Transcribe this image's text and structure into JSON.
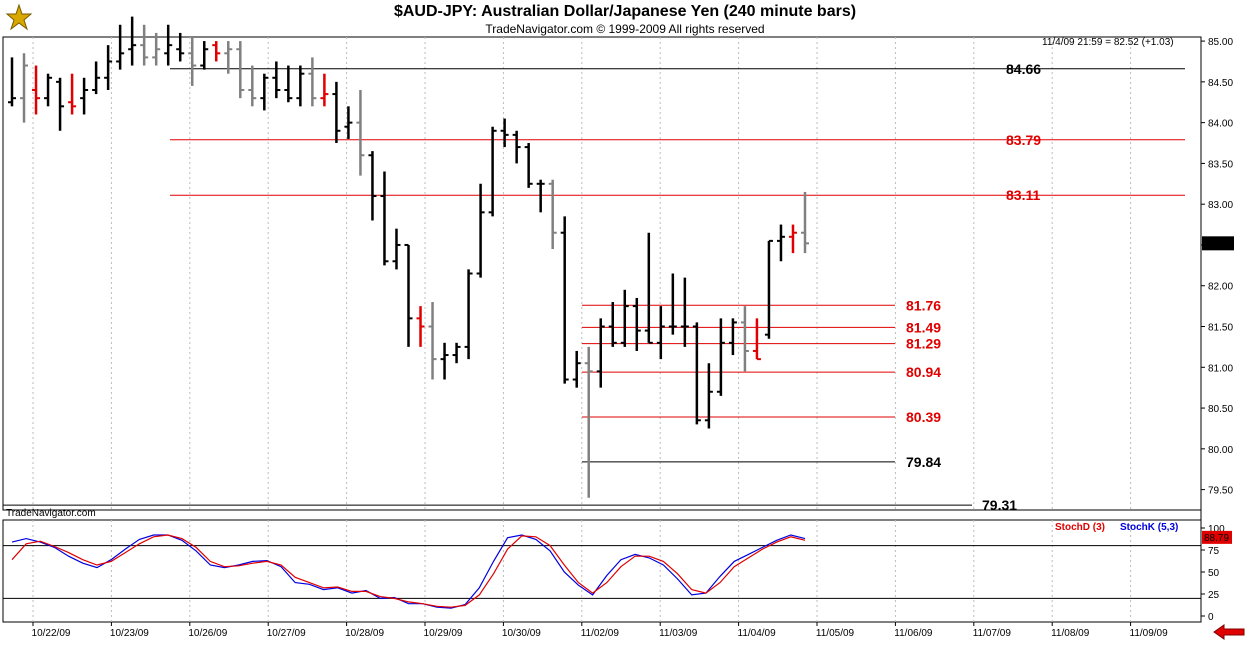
{
  "header": {
    "title": "$AUD-JPY:  Australian Dollar/Japanese Yen  (240 minute bars)",
    "subtitle": "TradeNavigator.com © 1999-2009 All rights reserved",
    "last_quote": "11/4/09 21:59 = 82.52 (+1.03)",
    "watermark": "TradeNavigator.com"
  },
  "colors": {
    "up": "#000000",
    "down": "#808080",
    "red_bar": "#e00000",
    "support_line": "#cc0000",
    "stoch_d": "#e00000",
    "stoch_k": "#0000e0"
  },
  "chart_data": [
    {
      "type": "ohlc",
      "ylim": [
        79.25,
        85.05
      ],
      "price_ticks": [
        "85.00",
        "84.50",
        "84.00",
        "83.50",
        "83.00",
        "82.50",
        "82.00",
        "81.50",
        "81.00",
        "80.50",
        "80.00",
        "79.50"
      ],
      "current_price_label": "82.52",
      "date_labels": [
        "10/22/09",
        "10/23/09",
        "10/26/09",
        "10/27/09",
        "10/28/09",
        "10/29/09",
        "10/30/09",
        "11/02/09",
        "11/03/09",
        "11/04/09",
        "11/05/09",
        "11/06/09",
        "11/07/09",
        "11/08/09",
        "11/09/09"
      ],
      "levels": [
        {
          "value": 84.66,
          "label": "84.66",
          "color": "#000000"
        },
        {
          "value": 83.79,
          "label": "83.79",
          "color": "#e00000"
        },
        {
          "value": 83.11,
          "label": "83.11",
          "color": "#e00000"
        },
        {
          "value": 81.76,
          "label": "81.76",
          "color": "#e00000"
        },
        {
          "value": 81.49,
          "label": "81.49",
          "color": "#e00000"
        },
        {
          "value": 81.29,
          "label": "81.29",
          "color": "#e00000"
        },
        {
          "value": 80.94,
          "label": "80.94",
          "color": "#e00000"
        },
        {
          "value": 80.39,
          "label": "80.39",
          "color": "#e00000"
        },
        {
          "value": 79.84,
          "label": "79.84",
          "color": "#000000"
        },
        {
          "value": 79.31,
          "label": "79.31",
          "color": "#000000"
        }
      ],
      "bars": [
        {
          "o": 84.25,
          "h": 84.8,
          "l": 84.2,
          "c": 84.3,
          "t": "up"
        },
        {
          "o": 84.3,
          "h": 84.85,
          "l": 84.0,
          "c": 84.7,
          "t": "down"
        },
        {
          "o": 84.4,
          "h": 84.7,
          "l": 84.1,
          "c": 84.3,
          "t": "red"
        },
        {
          "o": 84.3,
          "h": 84.6,
          "l": 84.2,
          "c": 84.55,
          "t": "up"
        },
        {
          "o": 84.5,
          "h": 84.55,
          "l": 83.9,
          "c": 84.2,
          "t": "up"
        },
        {
          "o": 84.25,
          "h": 84.6,
          "l": 84.1,
          "c": 84.2,
          "t": "red"
        },
        {
          "o": 84.3,
          "h": 84.55,
          "l": 84.1,
          "c": 84.4,
          "t": "up"
        },
        {
          "o": 84.4,
          "h": 84.75,
          "l": 84.35,
          "c": 84.55,
          "t": "up"
        },
        {
          "o": 84.55,
          "h": 84.95,
          "l": 84.4,
          "c": 84.75,
          "t": "up"
        },
        {
          "o": 84.75,
          "h": 85.2,
          "l": 84.65,
          "c": 84.85,
          "t": "up"
        },
        {
          "o": 84.9,
          "h": 85.3,
          "l": 84.7,
          "c": 84.95,
          "t": "up"
        },
        {
          "o": 84.95,
          "h": 85.2,
          "l": 84.7,
          "c": 84.8,
          "t": "down"
        },
        {
          "o": 84.8,
          "h": 85.1,
          "l": 84.7,
          "c": 84.9,
          "t": "down"
        },
        {
          "o": 84.85,
          "h": 85.2,
          "l": 84.7,
          "c": 84.95,
          "t": "up"
        },
        {
          "o": 84.9,
          "h": 85.1,
          "l": 84.75,
          "c": 84.85,
          "t": "up"
        },
        {
          "o": 84.85,
          "h": 85.05,
          "l": 84.45,
          "c": 84.7,
          "t": "down"
        },
        {
          "o": 84.7,
          "h": 85.0,
          "l": 84.65,
          "c": 84.9,
          "t": "up"
        },
        {
          "o": 84.95,
          "h": 85.0,
          "l": 84.75,
          "c": 84.85,
          "t": "red"
        },
        {
          "o": 84.85,
          "h": 85.0,
          "l": 84.6,
          "c": 84.9,
          "t": "down"
        },
        {
          "o": 84.9,
          "h": 85.0,
          "l": 84.3,
          "c": 84.4,
          "t": "down"
        },
        {
          "o": 84.4,
          "h": 84.7,
          "l": 84.2,
          "c": 84.3,
          "t": "down"
        },
        {
          "o": 84.3,
          "h": 84.6,
          "l": 84.15,
          "c": 84.55,
          "t": "up"
        },
        {
          "o": 84.55,
          "h": 84.75,
          "l": 84.3,
          "c": 84.4,
          "t": "up"
        },
        {
          "o": 84.4,
          "h": 84.7,
          "l": 84.25,
          "c": 84.3,
          "t": "up"
        },
        {
          "o": 84.3,
          "h": 84.7,
          "l": 84.2,
          "c": 84.6,
          "t": "up"
        },
        {
          "o": 84.6,
          "h": 84.8,
          "l": 84.2,
          "c": 84.3,
          "t": "down"
        },
        {
          "o": 84.3,
          "h": 84.6,
          "l": 84.2,
          "c": 84.35,
          "t": "red"
        },
        {
          "o": 84.35,
          "h": 84.5,
          "l": 83.75,
          "c": 83.9,
          "t": "up"
        },
        {
          "o": 83.95,
          "h": 84.2,
          "l": 83.8,
          "c": 84.0,
          "t": "up"
        },
        {
          "o": 84.0,
          "h": 84.4,
          "l": 83.35,
          "c": 83.6,
          "t": "down"
        },
        {
          "o": 83.6,
          "h": 83.65,
          "l": 82.8,
          "c": 83.1,
          "t": "up"
        },
        {
          "o": 83.1,
          "h": 83.4,
          "l": 82.25,
          "c": 82.3,
          "t": "up"
        },
        {
          "o": 82.3,
          "h": 82.7,
          "l": 82.2,
          "c": 82.5,
          "t": "up"
        },
        {
          "o": 82.5,
          "h": 82.5,
          "l": 81.25,
          "c": 81.6,
          "t": "up"
        },
        {
          "o": 81.6,
          "h": 81.75,
          "l": 81.25,
          "c": 81.5,
          "t": "red"
        },
        {
          "o": 81.5,
          "h": 81.8,
          "l": 80.85,
          "c": 81.1,
          "t": "down"
        },
        {
          "o": 81.1,
          "h": 81.3,
          "l": 80.85,
          "c": 81.15,
          "t": "up"
        },
        {
          "o": 81.15,
          "h": 81.3,
          "l": 81.05,
          "c": 81.25,
          "t": "up"
        },
        {
          "o": 81.25,
          "h": 82.2,
          "l": 81.1,
          "c": 82.15,
          "t": "up"
        },
        {
          "o": 82.15,
          "h": 83.25,
          "l": 82.1,
          "c": 82.9,
          "t": "up"
        },
        {
          "o": 82.9,
          "h": 83.95,
          "l": 82.85,
          "c": 83.9,
          "t": "up"
        },
        {
          "o": 83.9,
          "h": 84.05,
          "l": 83.7,
          "c": 83.85,
          "t": "up"
        },
        {
          "o": 83.85,
          "h": 83.9,
          "l": 83.5,
          "c": 83.7,
          "t": "up"
        },
        {
          "o": 83.7,
          "h": 83.75,
          "l": 83.2,
          "c": 83.25,
          "t": "up"
        },
        {
          "o": 83.25,
          "h": 83.3,
          "l": 82.9,
          "c": 83.25,
          "t": "up"
        },
        {
          "o": 83.25,
          "h": 83.3,
          "l": 82.45,
          "c": 82.65,
          "t": "down"
        },
        {
          "o": 82.65,
          "h": 82.85,
          "l": 80.8,
          "c": 80.85,
          "t": "up"
        },
        {
          "o": 80.85,
          "h": 81.2,
          "l": 80.75,
          "c": 81.05,
          "t": "up"
        },
        {
          "o": 81.05,
          "h": 81.25,
          "l": 79.4,
          "c": 80.95,
          "t": "down"
        },
        {
          "o": 80.95,
          "h": 81.6,
          "l": 80.75,
          "c": 81.5,
          "t": "up"
        },
        {
          "o": 81.5,
          "h": 81.8,
          "l": 81.25,
          "c": 81.3,
          "t": "up"
        },
        {
          "o": 81.3,
          "h": 81.95,
          "l": 81.25,
          "c": 81.75,
          "t": "up"
        },
        {
          "o": 81.75,
          "h": 81.85,
          "l": 81.2,
          "c": 81.45,
          "t": "up"
        },
        {
          "o": 81.45,
          "h": 82.65,
          "l": 81.3,
          "c": 81.3,
          "t": "up"
        },
        {
          "o": 81.3,
          "h": 81.75,
          "l": 81.1,
          "c": 81.5,
          "t": "up"
        },
        {
          "o": 81.5,
          "h": 82.15,
          "l": 81.4,
          "c": 81.5,
          "t": "up"
        },
        {
          "o": 81.5,
          "h": 82.1,
          "l": 81.25,
          "c": 81.5,
          "t": "up"
        },
        {
          "o": 81.5,
          "h": 81.55,
          "l": 80.3,
          "c": 80.35,
          "t": "up"
        },
        {
          "o": 80.35,
          "h": 81.05,
          "l": 80.25,
          "c": 80.7,
          "t": "up"
        },
        {
          "o": 80.7,
          "h": 81.6,
          "l": 80.65,
          "c": 81.3,
          "t": "up"
        },
        {
          "o": 81.3,
          "h": 81.6,
          "l": 81.15,
          "c": 81.55,
          "t": "up"
        },
        {
          "o": 81.55,
          "h": 81.75,
          "l": 80.95,
          "c": 81.2,
          "t": "down"
        },
        {
          "o": 81.2,
          "h": 81.6,
          "l": 81.1,
          "c": 81.1,
          "t": "red"
        },
        {
          "o": 81.4,
          "h": 82.55,
          "l": 81.35,
          "c": 82.55,
          "t": "up"
        },
        {
          "o": 82.55,
          "h": 82.75,
          "l": 82.3,
          "c": 82.6,
          "t": "up"
        },
        {
          "o": 82.6,
          "h": 82.75,
          "l": 82.4,
          "c": 82.65,
          "t": "red"
        },
        {
          "o": 82.65,
          "h": 83.15,
          "l": 82.4,
          "c": 82.52,
          "t": "down"
        }
      ]
    },
    {
      "type": "line",
      "title": "Stochastic",
      "legend": [
        {
          "name": "StochD (3)",
          "color": "#e00000"
        },
        {
          "name": "StochK (5,3)",
          "color": "#0000e0"
        }
      ],
      "ylim": [
        0,
        100
      ],
      "y_ticks": [
        "100",
        "75",
        "50",
        "25",
        "0"
      ],
      "reference_lines": [
        80,
        20
      ],
      "current_value_label": "88.79",
      "series": [
        {
          "name": "StochK (5,3)",
          "values": [
            84,
            88,
            84,
            78,
            68,
            60,
            55,
            64,
            76,
            87,
            92,
            92,
            86,
            74,
            58,
            55,
            58,
            62,
            63,
            56,
            38,
            36,
            30,
            32,
            26,
            29,
            20,
            21,
            14,
            14,
            10,
            9,
            13,
            32,
            62,
            89,
            92,
            87,
            74,
            50,
            35,
            24,
            46,
            64,
            70,
            66,
            58,
            42,
            24,
            26,
            45,
            62,
            70,
            78,
            86,
            92,
            88
          ]
        },
        {
          "name": "StochD (3)",
          "values": [
            64,
            82,
            85,
            79,
            72,
            64,
            58,
            62,
            72,
            82,
            90,
            92,
            88,
            78,
            62,
            56,
            57,
            60,
            62,
            58,
            44,
            38,
            32,
            33,
            28,
            28,
            22,
            20,
            16,
            14,
            11,
            10,
            12,
            24,
            48,
            76,
            91,
            90,
            80,
            58,
            38,
            26,
            38,
            56,
            68,
            68,
            62,
            48,
            30,
            26,
            38,
            56,
            66,
            76,
            84,
            90,
            86
          ]
        }
      ],
      "x_range": [
        0,
        56
      ]
    }
  ]
}
